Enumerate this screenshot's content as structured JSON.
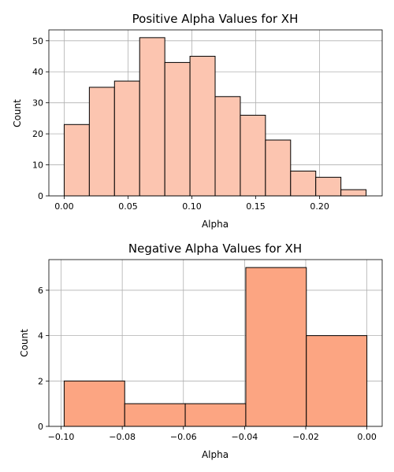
{
  "chart_data": [
    {
      "type": "bar",
      "title": "Positive Alpha Values for XH",
      "xlabel": "Alpha",
      "ylabel": "Count",
      "bin_edges": [
        0.0,
        0.0197,
        0.0394,
        0.0591,
        0.0788,
        0.0985,
        0.1182,
        0.1379,
        0.1576,
        0.1773,
        0.197,
        0.2167,
        0.2364
      ],
      "values": [
        23,
        35,
        37,
        51,
        43,
        45,
        32,
        26,
        18,
        8,
        6,
        2
      ],
      "xlim": [
        -0.012,
        0.249
      ],
      "ylim": [
        0,
        53.5
      ],
      "xticks": [
        0.0,
        0.05,
        0.1,
        0.15,
        0.2
      ],
      "xtick_labels": [
        "0.00",
        "0.05",
        "0.10",
        "0.15",
        "0.20"
      ],
      "yticks": [
        0,
        10,
        20,
        30,
        40,
        50
      ],
      "ytick_labels": [
        "0",
        "10",
        "20",
        "30",
        "40",
        "50"
      ],
      "grid": true,
      "color": "#fcc5b0"
    },
    {
      "type": "bar",
      "title": "Negative Alpha Values for XH",
      "xlabel": "Alpha",
      "ylabel": "Count",
      "bin_edges": [
        -0.099,
        -0.0792,
        -0.0594,
        -0.0396,
        -0.0198,
        0.0
      ],
      "values": [
        2,
        1,
        1,
        7,
        4
      ],
      "xlim": [
        -0.104,
        0.005
      ],
      "ylim": [
        0,
        7.35
      ],
      "xticks": [
        -0.1,
        -0.08,
        -0.06,
        -0.04,
        -0.02,
        0.0
      ],
      "xtick_labels": [
        "−0.10",
        "−0.08",
        "−0.06",
        "−0.04",
        "−0.02",
        "0.00"
      ],
      "yticks": [
        0,
        2,
        4,
        6
      ],
      "ytick_labels": [
        "0",
        "2",
        "4",
        "6"
      ],
      "grid": true,
      "color": "#fca582"
    }
  ]
}
